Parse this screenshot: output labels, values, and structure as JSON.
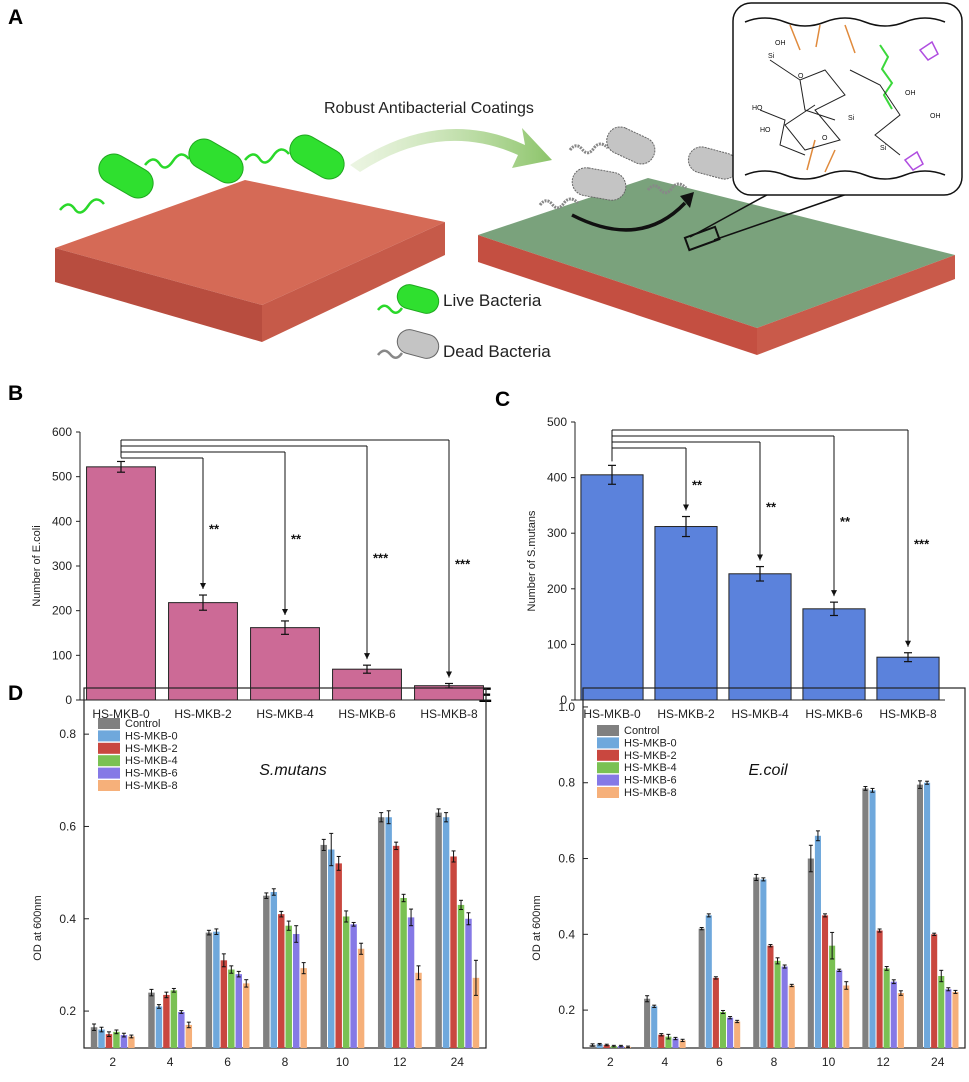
{
  "panels": {
    "A": "A",
    "B": "B",
    "C": "C",
    "D": "D",
    "E": "E"
  },
  "schematic": {
    "banner": "Robust Antibacterial Coatings",
    "legend_live": "Live Bacteria",
    "legend_dead": "Dead Bacteria",
    "chem_labels": [
      "Si",
      "O",
      "OH",
      "HO",
      "OH",
      "Si",
      "O",
      "Si",
      "OH",
      "HO"
    ]
  },
  "colors": {
    "ecoli_bar": "#cc6a96",
    "smutans_bar": "#5b82dc",
    "slab_red": "#c95a4a",
    "slab_green": "#6e9a72",
    "live_green": "#33e033",
    "dead_grey": "#bfbfbf"
  },
  "chart_data": [
    {
      "id": "B",
      "type": "bar",
      "title": "",
      "xlabel": "",
      "ylabel": "Number of E.coli",
      "ylim": [
        0,
        600
      ],
      "yticks": [
        "0",
        "100",
        "200",
        "300",
        "400",
        "500",
        "600"
      ],
      "categories": [
        "HS-MKB-0",
        "HS-MKB-2",
        "HS-MKB-4",
        "HS-MKB-6",
        "HS-MKB-8"
      ],
      "values": [
        522,
        218,
        162,
        69,
        32
      ],
      "errors": [
        12,
        17,
        15,
        9,
        5
      ],
      "significance": [
        "",
        "**",
        "**",
        "***",
        "***"
      ]
    },
    {
      "id": "C",
      "type": "bar",
      "title": "",
      "xlabel": "",
      "ylabel": "Number of S.mutans",
      "ylim": [
        0,
        500
      ],
      "yticks": [
        "0",
        "100",
        "200",
        "300",
        "400",
        "500"
      ],
      "categories": [
        "HS-MKB-0",
        "HS-MKB-2",
        "HS-MKB-4",
        "HS-MKB-6",
        "HS-MKB-8"
      ],
      "values": [
        405,
        312,
        227,
        164,
        77
      ],
      "errors": [
        17,
        18,
        13,
        12,
        8
      ],
      "significance": [
        "",
        "**",
        "**",
        "**",
        "***"
      ]
    },
    {
      "id": "D",
      "type": "bar",
      "title": "S.mutans",
      "xlabel": "",
      "ylabel": "OD at 600nm",
      "ylim": [
        0.12,
        0.9
      ],
      "yticks": [
        "0.2",
        "0.4",
        "0.6",
        "0.8"
      ],
      "yticks_values": [
        0.2,
        0.4,
        0.6,
        0.8
      ],
      "categories": [
        "2",
        "4",
        "6",
        "8",
        "10",
        "12",
        "24"
      ],
      "series": [
        {
          "name": "Control",
          "color": "#808080",
          "values": [
            0.165,
            0.24,
            0.37,
            0.45,
            0.56,
            0.62,
            0.63
          ],
          "errors": [
            0.007,
            0.007,
            0.005,
            0.006,
            0.012,
            0.01,
            0.008
          ]
        },
        {
          "name": "HS-MKB-0",
          "color": "#6fa8dc",
          "values": [
            0.16,
            0.21,
            0.372,
            0.458,
            0.55,
            0.62,
            0.62
          ],
          "errors": [
            0.005,
            0.004,
            0.006,
            0.007,
            0.035,
            0.014,
            0.01
          ]
        },
        {
          "name": "HS-MKB-2",
          "color": "#c9473f",
          "values": [
            0.15,
            0.235,
            0.31,
            0.41,
            0.52,
            0.558,
            0.535
          ],
          "errors": [
            0.005,
            0.006,
            0.014,
            0.006,
            0.015,
            0.008,
            0.012
          ]
        },
        {
          "name": "HS-MKB-4",
          "color": "#7ac153",
          "values": [
            0.155,
            0.245,
            0.29,
            0.385,
            0.405,
            0.445,
            0.43
          ],
          "errors": [
            0.004,
            0.004,
            0.008,
            0.01,
            0.012,
            0.008,
            0.01
          ]
        },
        {
          "name": "HS-MKB-6",
          "color": "#8579e6",
          "values": [
            0.148,
            0.198,
            0.28,
            0.367,
            0.388,
            0.403,
            0.4
          ],
          "errors": [
            0.004,
            0.003,
            0.006,
            0.018,
            0.004,
            0.018,
            0.013
          ]
        },
        {
          "name": "HS-MKB-8",
          "color": "#f6b07a",
          "values": [
            0.145,
            0.17,
            0.26,
            0.293,
            0.335,
            0.283,
            0.272
          ],
          "errors": [
            0.003,
            0.006,
            0.008,
            0.012,
            0.012,
            0.015,
            0.038
          ]
        }
      ]
    },
    {
      "id": "E",
      "type": "bar",
      "title": "E.coil",
      "xlabel": "",
      "ylabel": "OD at 600nm",
      "ylim": [
        0.1,
        1.05
      ],
      "yticks": [
        "0.2",
        "0.4",
        "0.6",
        "0.8",
        "1.0"
      ],
      "yticks_values": [
        0.2,
        0.4,
        0.6,
        0.8,
        1.0
      ],
      "categories": [
        "2",
        "4",
        "6",
        "8",
        "10",
        "12",
        "24"
      ],
      "series": [
        {
          "name": "Control",
          "color": "#808080",
          "values": [
            0.108,
            0.23,
            0.415,
            0.55,
            0.6,
            0.785,
            0.795
          ],
          "errors": [
            0.003,
            0.008,
            0.003,
            0.008,
            0.035,
            0.005,
            0.01
          ]
        },
        {
          "name": "HS-MKB-0",
          "color": "#6fa8dc",
          "values": [
            0.11,
            0.21,
            0.45,
            0.545,
            0.66,
            0.78,
            0.8
          ],
          "errors": [
            0.002,
            0.003,
            0.004,
            0.004,
            0.013,
            0.005,
            0.004
          ]
        },
        {
          "name": "HS-MKB-2",
          "color": "#c9473f",
          "values": [
            0.108,
            0.135,
            0.285,
            0.37,
            0.45,
            0.41,
            0.4
          ],
          "errors": [
            0.002,
            0.003,
            0.003,
            0.003,
            0.004,
            0.004,
            0.003
          ]
        },
        {
          "name": "HS-MKB-4",
          "color": "#7ac153",
          "values": [
            0.105,
            0.13,
            0.195,
            0.33,
            0.37,
            0.31,
            0.29
          ],
          "errors": [
            0.002,
            0.006,
            0.004,
            0.008,
            0.035,
            0.005,
            0.015
          ]
        },
        {
          "name": "HS-MKB-6",
          "color": "#8579e6",
          "values": [
            0.105,
            0.125,
            0.18,
            0.315,
            0.305,
            0.275,
            0.255
          ],
          "errors": [
            0.002,
            0.003,
            0.003,
            0.004,
            0.003,
            0.005,
            0.004
          ]
        },
        {
          "name": "HS-MKB-8",
          "color": "#f6b07a",
          "values": [
            0.103,
            0.12,
            0.17,
            0.265,
            0.265,
            0.245,
            0.248
          ],
          "errors": [
            0.002,
            0.003,
            0.003,
            0.003,
            0.01,
            0.006,
            0.004
          ]
        }
      ]
    }
  ]
}
